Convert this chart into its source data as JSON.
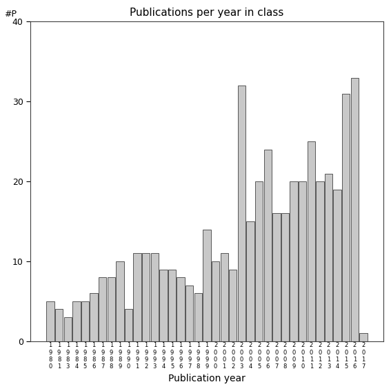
{
  "title": "Publications per year in class",
  "xlabel": "Publication year",
  "ylabel": "#P",
  "bar_color": "#c8c8c8",
  "bar_edge_color": "#404040",
  "ylim": [
    0,
    40
  ],
  "yticks": [
    0,
    10,
    20,
    30,
    40
  ],
  "years": [
    "1980",
    "1981",
    "1983",
    "1984",
    "1985",
    "1986",
    "1987",
    "1988",
    "1989",
    "1990",
    "1991",
    "1992",
    "1993",
    "1994",
    "1995",
    "1996",
    "1997",
    "1998",
    "1999",
    "2000",
    "2001",
    "2002",
    "2003",
    "2004",
    "2005",
    "2006",
    "2007",
    "2008",
    "2009",
    "2010",
    "2011",
    "2012",
    "2013",
    "2014",
    "2015",
    "2016",
    "2017"
  ],
  "values": [
    5,
    4,
    3,
    5,
    5,
    6,
    8,
    8,
    10,
    4,
    11,
    11,
    11,
    9,
    9,
    8,
    7,
    6,
    14,
    10,
    11,
    9,
    32,
    15,
    20,
    24,
    16,
    16,
    20,
    20,
    25,
    20,
    21,
    19,
    31,
    33,
    1
  ],
  "background_color": "#ffffff",
  "figsize": [
    5.67,
    5.67
  ],
  "dpi": 100
}
